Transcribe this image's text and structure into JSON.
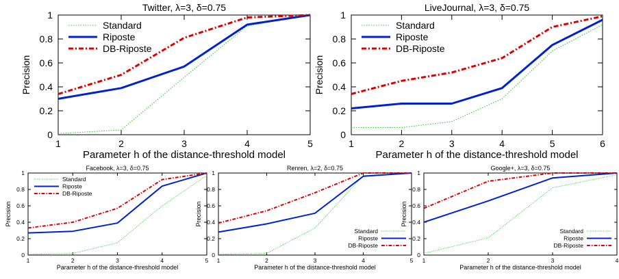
{
  "colors": {
    "Standard": "#33cc33",
    "Riposte": "#0022cc",
    "DB-Riposte": "#dd0000",
    "axis": "#000000"
  },
  "chart_data": [
    {
      "type": "line",
      "title": "Twitter, λ=3, δ=0.75",
      "xlabel": "Parameter h of the distance-threshold model",
      "ylabel": "Precision",
      "xlim": [
        1,
        5
      ],
      "ylim": [
        0,
        1
      ],
      "xticks": [
        "1",
        "2",
        "3",
        "4",
        "5"
      ],
      "yticks": [
        "0",
        "0.2",
        "0.4",
        "0.6",
        "0.8",
        "1"
      ],
      "legend": "top-left",
      "x": [
        1,
        2,
        3,
        4,
        5
      ],
      "series": [
        {
          "name": "Standard",
          "values": [
            0.01,
            0.04,
            0.48,
            0.91,
            1.0
          ]
        },
        {
          "name": "Riposte",
          "values": [
            0.3,
            0.39,
            0.57,
            0.92,
            1.0
          ]
        },
        {
          "name": "DB-Riposte",
          "values": [
            0.34,
            0.5,
            0.81,
            0.98,
            1.0
          ]
        }
      ]
    },
    {
      "type": "line",
      "title": "LiveJournal, λ=3, δ=0.75",
      "xlabel": "Parameter h of the distance-threshold model",
      "ylabel": "Precision",
      "xlim": [
        1,
        6
      ],
      "ylim": [
        0,
        1
      ],
      "xticks": [
        "1",
        "2",
        "3",
        "4",
        "5",
        "6"
      ],
      "yticks": [
        "0",
        "0.2",
        "0.4",
        "0.6",
        "0.8",
        "1"
      ],
      "legend": "top-left",
      "x": [
        1,
        2,
        3,
        4,
        5,
        6
      ],
      "series": [
        {
          "name": "Standard",
          "values": [
            0.06,
            0.06,
            0.11,
            0.3,
            0.7,
            0.92
          ]
        },
        {
          "name": "Riposte",
          "values": [
            0.22,
            0.26,
            0.26,
            0.39,
            0.75,
            0.96
          ]
        },
        {
          "name": "DB-Riposte",
          "values": [
            0.34,
            0.45,
            0.52,
            0.64,
            0.9,
            0.99
          ]
        }
      ]
    },
    {
      "type": "line",
      "title": "Facebook, λ=3, δ=0.75",
      "xlabel": "Parameter h of the distance-threshold model",
      "ylabel": "Precision",
      "xlim": [
        1,
        5
      ],
      "ylim": [
        0,
        1
      ],
      "xticks": [
        "1",
        "2",
        "3",
        "4",
        "5"
      ],
      "yticks": [
        "0",
        "0.2",
        "0.4",
        "0.6",
        "0.8",
        "1"
      ],
      "legend": "top-left",
      "x": [
        1,
        2,
        3,
        4,
        5
      ],
      "series": [
        {
          "name": "Standard",
          "values": [
            0.01,
            0.02,
            0.15,
            0.6,
            0.97
          ]
        },
        {
          "name": "Riposte",
          "values": [
            0.27,
            0.29,
            0.39,
            0.84,
            1.0
          ]
        },
        {
          "name": "DB-Riposte",
          "values": [
            0.33,
            0.4,
            0.57,
            0.92,
            1.0
          ]
        }
      ]
    },
    {
      "type": "line",
      "title": "Renren, λ=2, δ=0.75",
      "xlabel": "Parameter h of the distance-threshold model",
      "ylabel": "Precision",
      "xlim": [
        1,
        5
      ],
      "ylim": [
        0,
        1
      ],
      "xticks": [
        "1",
        "2",
        "3",
        "4",
        "5"
      ],
      "yticks": [
        "0",
        "0.2",
        "0.4",
        "0.6",
        "0.8",
        "1"
      ],
      "legend": "bottom-right",
      "x": [
        1,
        2,
        3,
        4,
        5
      ],
      "series": [
        {
          "name": "Standard",
          "values": [
            0.01,
            0.02,
            0.33,
            0.97,
            1.0
          ]
        },
        {
          "name": "Riposte",
          "values": [
            0.28,
            0.38,
            0.51,
            0.96,
            1.0
          ]
        },
        {
          "name": "DB-Riposte",
          "values": [
            0.39,
            0.54,
            0.76,
            1.0,
            1.0
          ]
        }
      ]
    },
    {
      "type": "line",
      "title": "Google+, λ=3, δ=0.75",
      "xlabel": "Parameter h of the distance-threshold model",
      "ylabel": "Precision",
      "xlim": [
        1,
        4
      ],
      "ylim": [
        0,
        1
      ],
      "xticks": [
        "1",
        "2",
        "3",
        "4"
      ],
      "yticks": [
        "0",
        "0.2",
        "0.4",
        "0.6",
        "0.8",
        "1"
      ],
      "legend": "bottom-right",
      "x": [
        1,
        2,
        3,
        4
      ],
      "series": [
        {
          "name": "Standard",
          "values": [
            0.02,
            0.21,
            0.82,
            0.98
          ]
        },
        {
          "name": "Riposte",
          "values": [
            0.4,
            0.66,
            0.94,
            1.0
          ]
        },
        {
          "name": "DB-Riposte",
          "values": [
            0.57,
            0.9,
            1.0,
            1.0
          ]
        }
      ]
    }
  ]
}
